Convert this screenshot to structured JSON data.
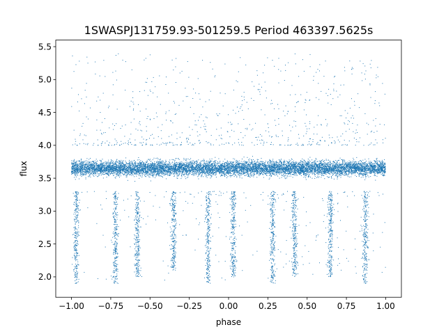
{
  "chart_data": {
    "type": "scatter",
    "title": "1SWASPJ131759.93-501259.5 Period 463397.5625s",
    "xlabel": "phase",
    "ylabel": "flux",
    "xlim": [
      -1.1,
      1.1
    ],
    "ylim": [
      1.69,
      5.6
    ],
    "x_ticks": [
      -1.0,
      -0.75,
      -0.5,
      -0.25,
      0.0,
      0.25,
      0.5,
      0.75,
      1.0
    ],
    "x_tick_labels": [
      "−1.00",
      "−0.75",
      "−0.50",
      "−0.25",
      "0.00",
      "0.25",
      "0.50",
      "0.75",
      "1.00"
    ],
    "y_ticks": [
      2.0,
      2.5,
      3.0,
      3.5,
      4.0,
      4.5,
      5.0,
      5.5
    ],
    "y_tick_labels": [
      "2.0",
      "2.5",
      "3.0",
      "3.5",
      "4.0",
      "4.5",
      "5.0",
      "5.5"
    ],
    "grid": false,
    "marker_color": "#1f77b4",
    "series": [
      {
        "phase_range": [
          -1.0,
          1.0
        ],
        "baseline_flux": 3.65,
        "baseline_spread": [
          3.3,
          4.0
        ],
        "eclipse_dips": [
          {
            "phase": -0.97,
            "min_flux": 1.9
          },
          {
            "phase": -0.72,
            "min_flux": 1.9
          },
          {
            "phase": -0.58,
            "min_flux": 2.0
          },
          {
            "phase": -0.35,
            "min_flux": 2.1
          },
          {
            "phase": -0.13,
            "min_flux": 1.9
          },
          {
            "phase": 0.03,
            "min_flux": 2.0
          },
          {
            "phase": 0.28,
            "min_flux": 1.9
          },
          {
            "phase": 0.42,
            "min_flux": 2.0
          },
          {
            "phase": 0.65,
            "min_flux": 2.0
          },
          {
            "phase": 0.87,
            "min_flux": 1.9
          }
        ],
        "upper_scatter_max": 5.4
      }
    ]
  }
}
